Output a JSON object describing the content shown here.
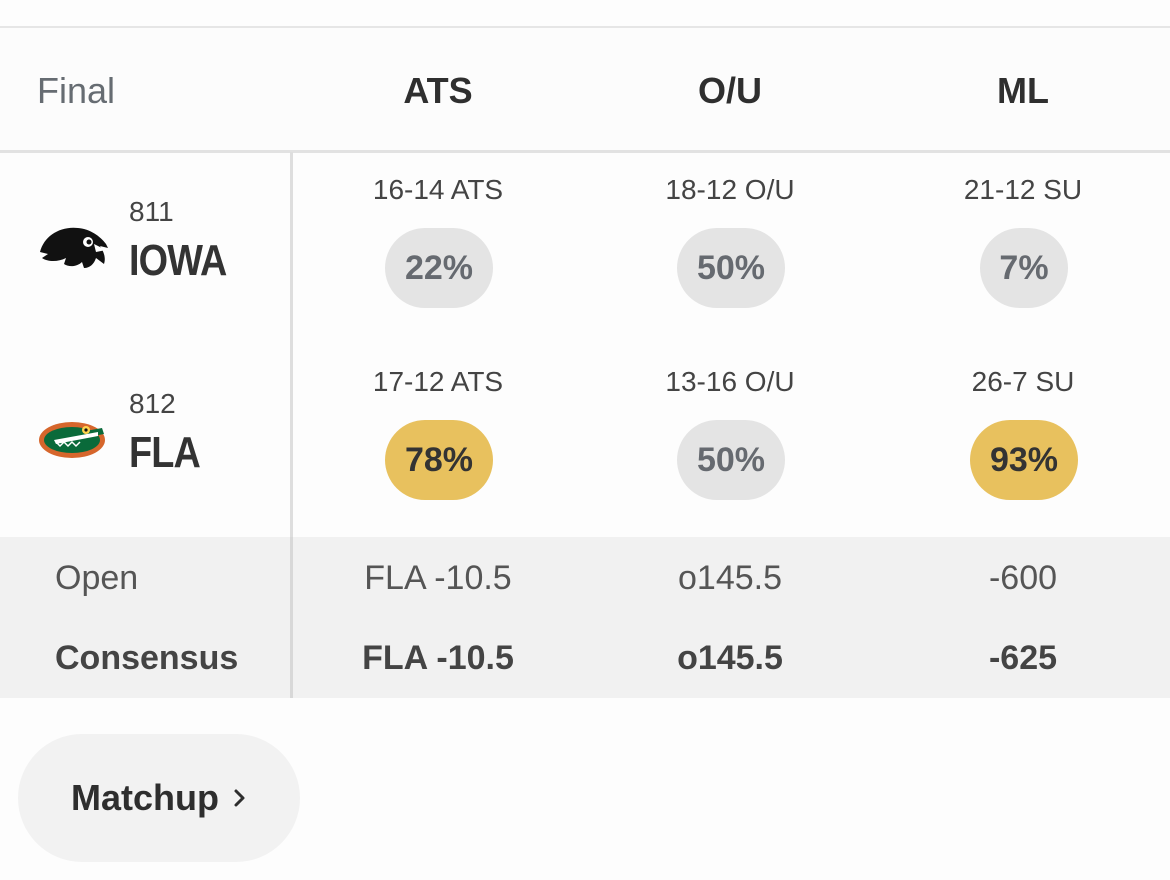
{
  "header": {
    "status": "Final",
    "columns": [
      "ATS",
      "O/U",
      "ML"
    ]
  },
  "teams": [
    {
      "number": "811",
      "abbr": "IOWA",
      "logo": "hawkeye-logo",
      "ats_record": "16-14 ATS",
      "ou_record": "18-12 O/U",
      "su_record": "21-12 SU",
      "ats_pct": "22%",
      "ou_pct": "50%",
      "ml_pct": "7%"
    },
    {
      "number": "812",
      "abbr": "FLA",
      "logo": "gator-logo",
      "ats_record": "17-12 ATS",
      "ou_record": "13-16 O/U",
      "su_record": "26-7 SU",
      "ats_pct": "78%",
      "ou_pct": "50%",
      "ml_pct": "93%"
    }
  ],
  "lines": {
    "open_label": "Open",
    "open_ats": "FLA -10.5",
    "open_ou": "o145.5",
    "open_ml": "-600",
    "consensus_label": "Consensus",
    "consensus_ats": "FLA -10.5",
    "consensus_ou": "o145.5",
    "consensus_ml": "-625"
  },
  "matchup_button": {
    "label": "Matchup",
    "icon": "chevron-right-icon"
  },
  "colors": {
    "highlight": "#e8c15e",
    "neutral_pill": "#e4e4e4",
    "lines_bg": "#f1f1f1"
  }
}
